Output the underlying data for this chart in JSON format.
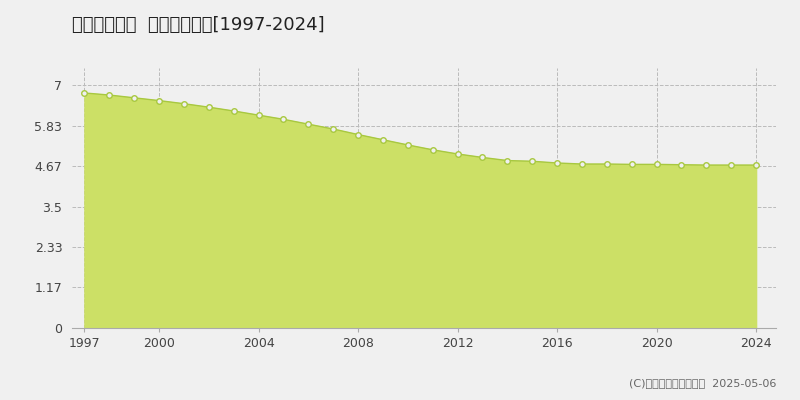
{
  "title": "富良野市扇町  基準地価推移[1997-2024]",
  "years": [
    1997,
    1998,
    1999,
    2000,
    2001,
    2002,
    2003,
    2004,
    2005,
    2006,
    2007,
    2008,
    2009,
    2010,
    2011,
    2012,
    2013,
    2014,
    2015,
    2016,
    2017,
    2018,
    2019,
    2020,
    2021,
    2022,
    2023,
    2024
  ],
  "values": [
    6.78,
    6.72,
    6.64,
    6.56,
    6.47,
    6.37,
    6.26,
    6.14,
    6.02,
    5.88,
    5.74,
    5.58,
    5.43,
    5.28,
    5.14,
    5.02,
    4.92,
    4.83,
    4.81,
    4.76,
    4.73,
    4.73,
    4.72,
    4.72,
    4.71,
    4.7,
    4.7,
    4.7
  ],
  "line_color": "#a8c840",
  "fill_color": "#cce066",
  "marker_face_color": "#f0f0f0",
  "marker_edge_color": "#a8c840",
  "bg_color": "#f0f0f0",
  "plot_bg_color": "#f0f0f0",
  "grid_color": "#bbbbbb",
  "yticks": [
    0,
    1.17,
    2.33,
    3.5,
    4.67,
    5.83,
    7
  ],
  "ylim": [
    0,
    7.5
  ],
  "xlim": [
    1996.5,
    2024.8
  ],
  "xticks": [
    1997,
    2000,
    2004,
    2008,
    2012,
    2016,
    2020,
    2024
  ],
  "copyright_text": "(C)土地価格ドットコム  2025-05-06",
  "title_fontsize": 13,
  "axis_fontsize": 9,
  "legend_fontsize": 9,
  "copyright_fontsize": 8
}
